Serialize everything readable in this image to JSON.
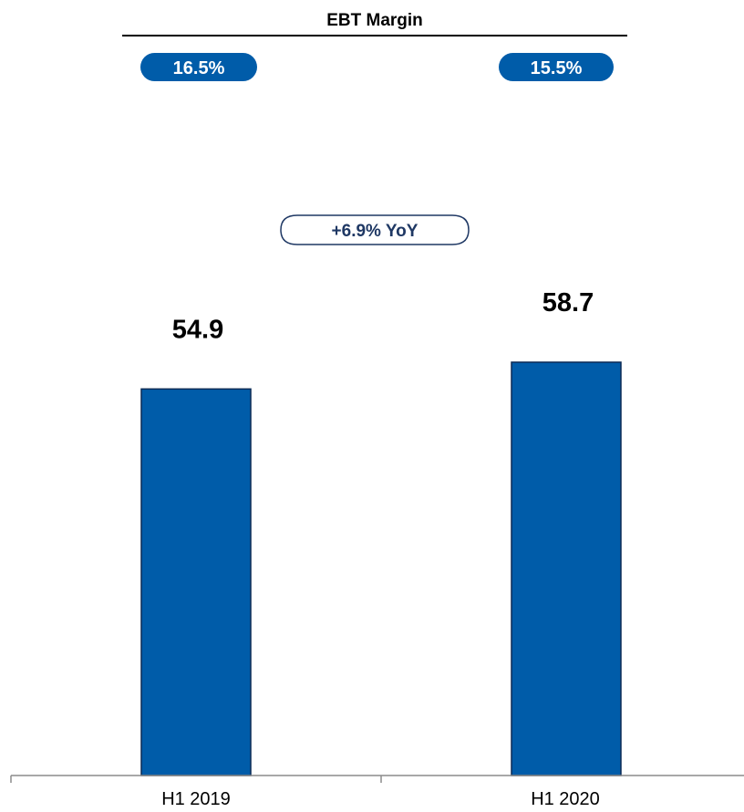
{
  "chart_data": {
    "type": "bar",
    "categories": [
      "H1 2019",
      "H1 2020"
    ],
    "values": [
      54.9,
      58.7
    ],
    "value_labels": [
      "54.9",
      "58.7"
    ],
    "title": "",
    "xlabel": "",
    "ylabel": "",
    "ylim": [
      0,
      70
    ],
    "grid": false,
    "legend": "none",
    "bar_color": "#005CA9",
    "bar_border_color": "#0B2A55",
    "margin_header": "EBT Margin",
    "margins": [
      "16.5%",
      "15.5%"
    ],
    "margin_badge_color": "#005CA9",
    "growth_label": "+6.9% YoY",
    "growth_text_color": "#1F3864"
  }
}
